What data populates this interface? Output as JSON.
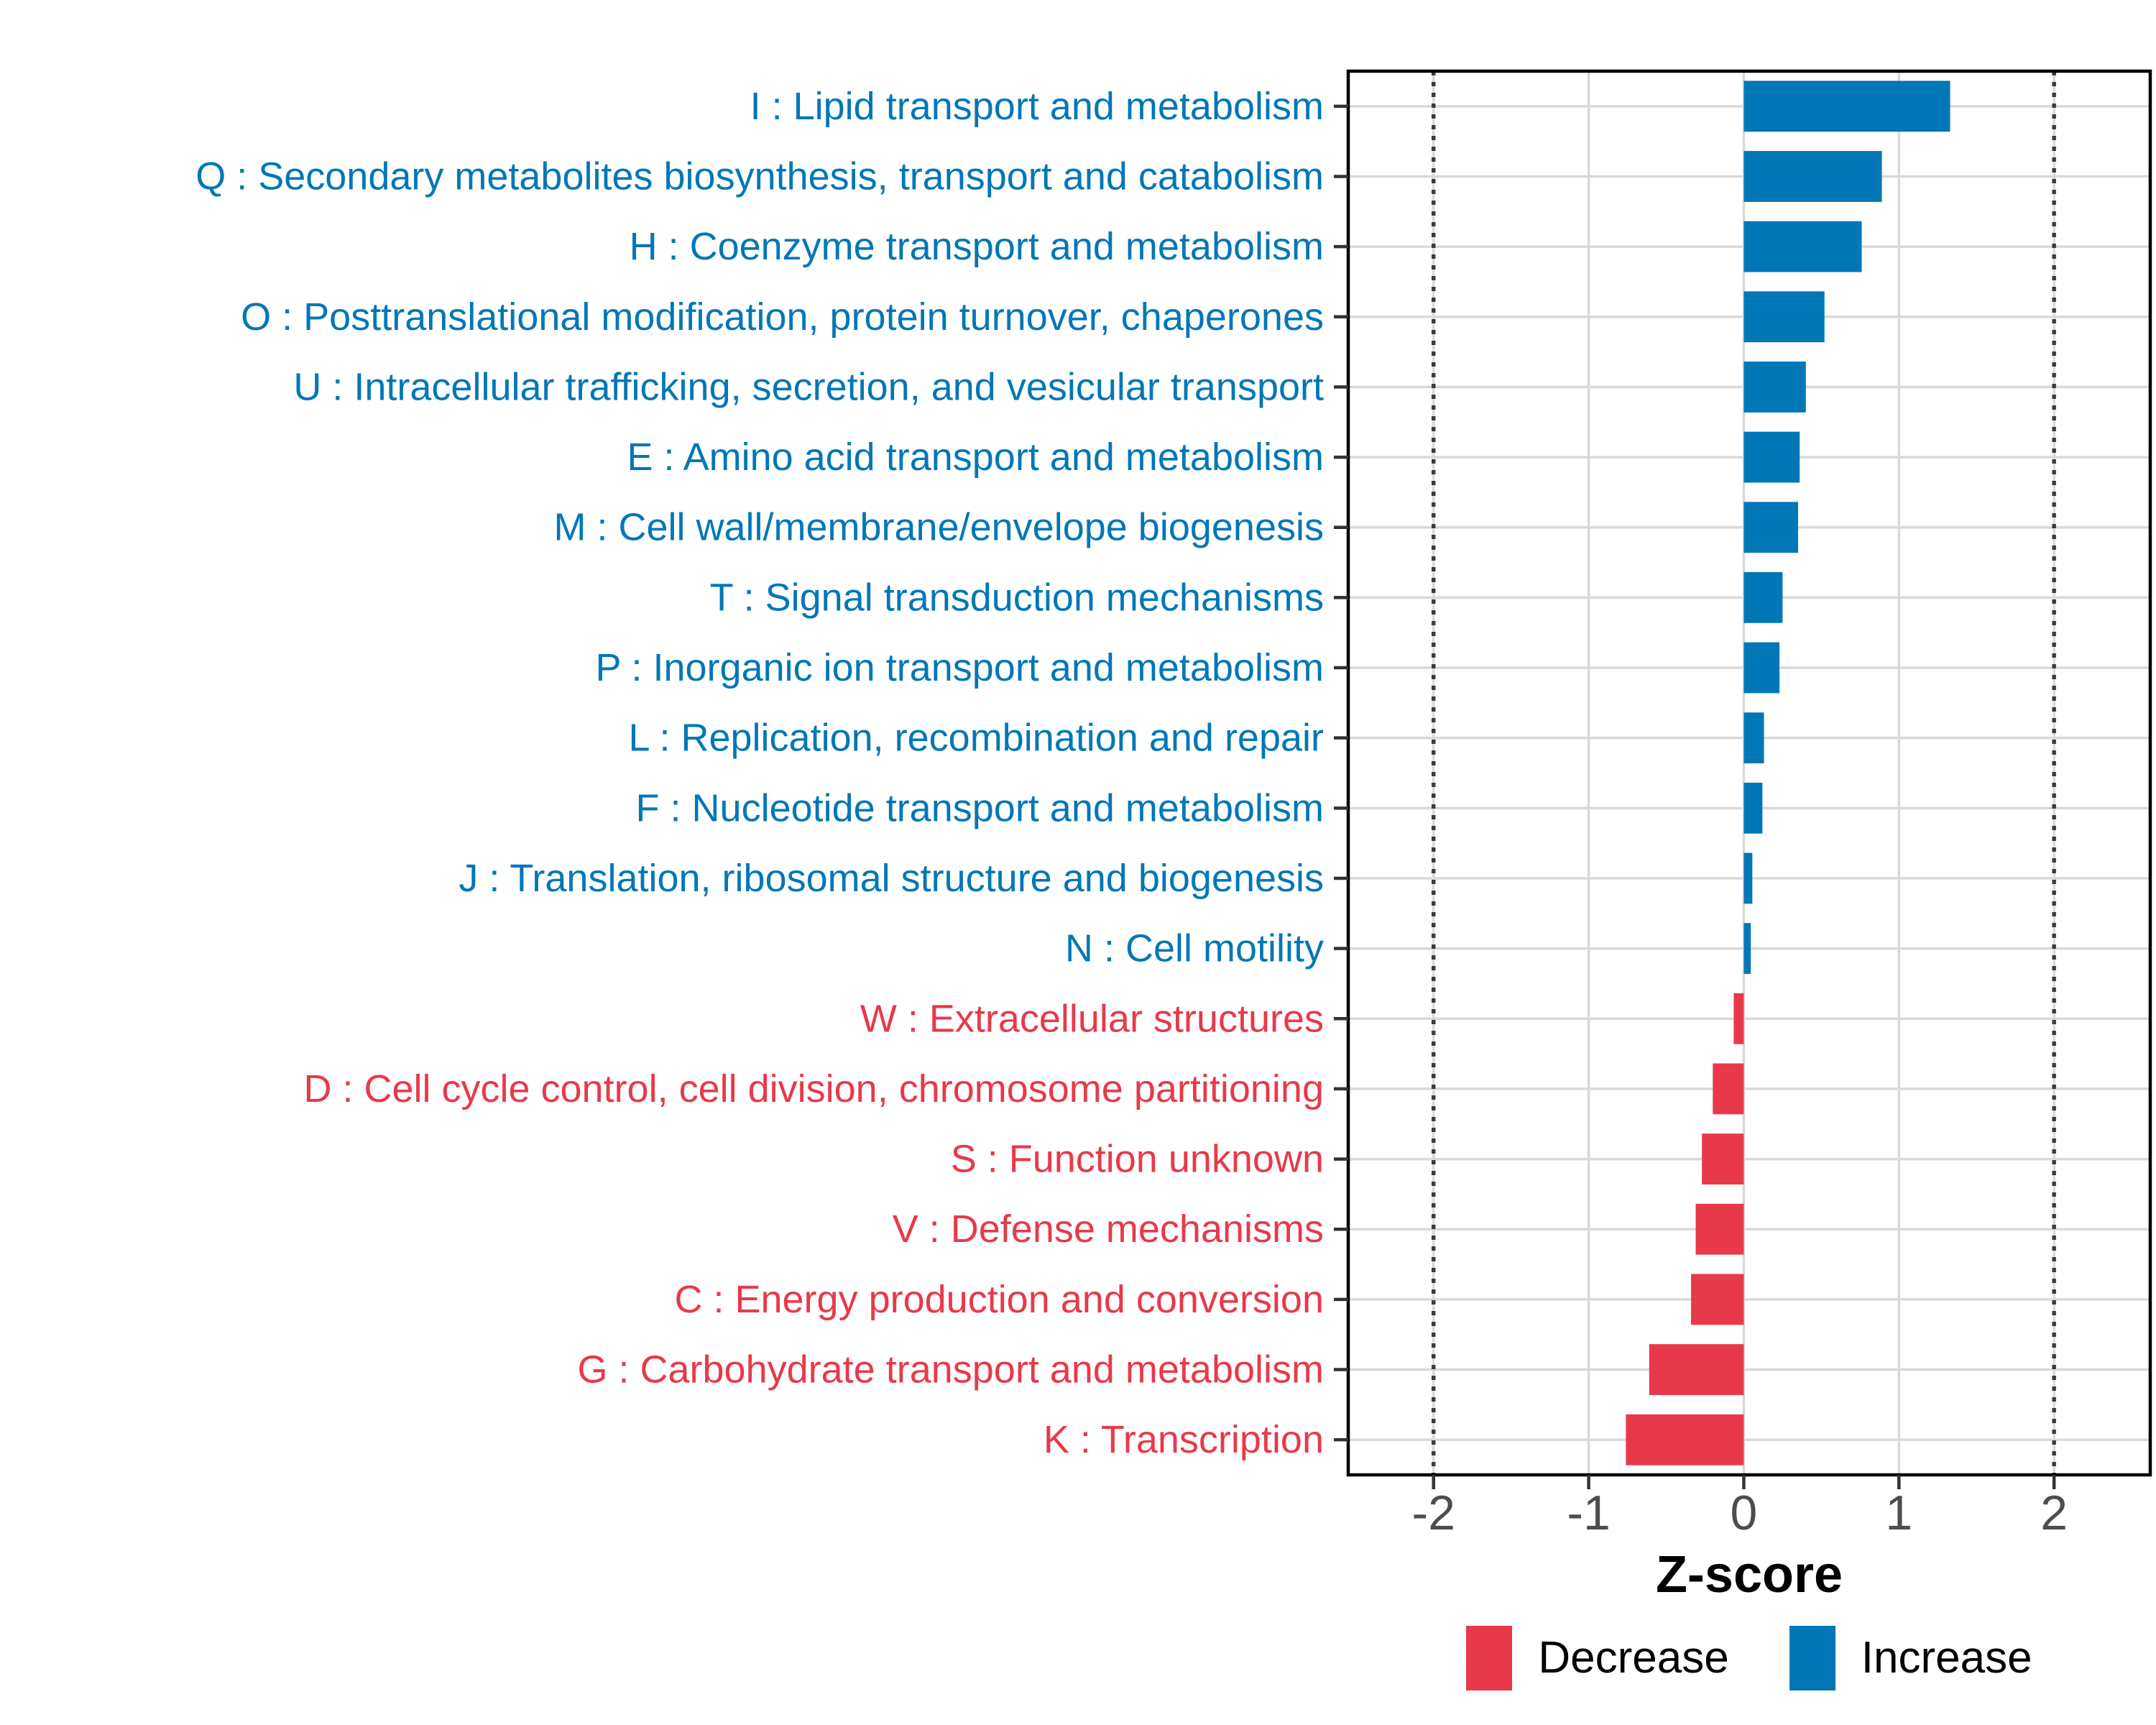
{
  "chart_data": {
    "type": "bar",
    "orientation": "horizontal",
    "title": "",
    "xlabel": "Z-score",
    "ylabel": "",
    "xlim": [
      -2.55,
      2.62
    ],
    "x_ticks": [
      -2,
      -1,
      0,
      1,
      2
    ],
    "x_tick_labels": [
      "-2",
      "-1",
      "0",
      "1",
      "2"
    ],
    "reference_lines": [
      -2,
      2
    ],
    "grid": "major-only",
    "legend_position": "bottom",
    "colors": {
      "increase": "#0177B7",
      "decrease": "#E8394A",
      "grid": "#D9D9D9",
      "axis_text": "#4D4D4D",
      "panel_border": "#000000",
      "reference_line": "#3C3C3C",
      "tick_mark": "#333333"
    },
    "bars": [
      {
        "label": "I : Lipid transport and metabolism",
        "value": 1.33,
        "direction": "Increase"
      },
      {
        "label": "Q : Secondary metabolites biosynthesis, transport and catabolism",
        "value": 0.89,
        "direction": "Increase"
      },
      {
        "label": "H : Coenzyme transport and metabolism",
        "value": 0.76,
        "direction": "Increase"
      },
      {
        "label": "O : Posttranslational modification, protein turnover, chaperones",
        "value": 0.52,
        "direction": "Increase"
      },
      {
        "label": "U : Intracellular trafficking, secretion, and vesicular transport",
        "value": 0.4,
        "direction": "Increase"
      },
      {
        "label": "E : Amino acid transport and metabolism",
        "value": 0.36,
        "direction": "Increase"
      },
      {
        "label": "M : Cell wall/membrane/envelope biogenesis",
        "value": 0.35,
        "direction": "Increase"
      },
      {
        "label": "T : Signal transduction mechanisms",
        "value": 0.25,
        "direction": "Increase"
      },
      {
        "label": "P : Inorganic ion transport and metabolism",
        "value": 0.23,
        "direction": "Increase"
      },
      {
        "label": "L : Replication, recombination and repair",
        "value": 0.13,
        "direction": "Increase"
      },
      {
        "label": "F : Nucleotide transport and metabolism",
        "value": 0.12,
        "direction": "Increase"
      },
      {
        "label": "J : Translation, ribosomal structure and biogenesis",
        "value": 0.055,
        "direction": "Increase"
      },
      {
        "label": "N : Cell motility",
        "value": 0.045,
        "direction": "Increase"
      },
      {
        "label": "W : Extracellular structures",
        "value": -0.065,
        "direction": "Decrease"
      },
      {
        "label": "D : Cell cycle control, cell division, chromosome partitioning",
        "value": -0.2,
        "direction": "Decrease"
      },
      {
        "label": "S : Function unknown",
        "value": -0.27,
        "direction": "Decrease"
      },
      {
        "label": "V : Defense mechanisms",
        "value": -0.31,
        "direction": "Decrease"
      },
      {
        "label": "C : Energy production and conversion",
        "value": -0.34,
        "direction": "Decrease"
      },
      {
        "label": "G : Carbohydrate transport and metabolism",
        "value": -0.61,
        "direction": "Decrease"
      },
      {
        "label": "K : Transcription",
        "value": -0.76,
        "direction": "Decrease"
      }
    ],
    "legend": {
      "items": [
        {
          "label": "Decrease",
          "color": "#E8394A"
        },
        {
          "label": "Increase",
          "color": "#0177B7"
        }
      ]
    }
  }
}
